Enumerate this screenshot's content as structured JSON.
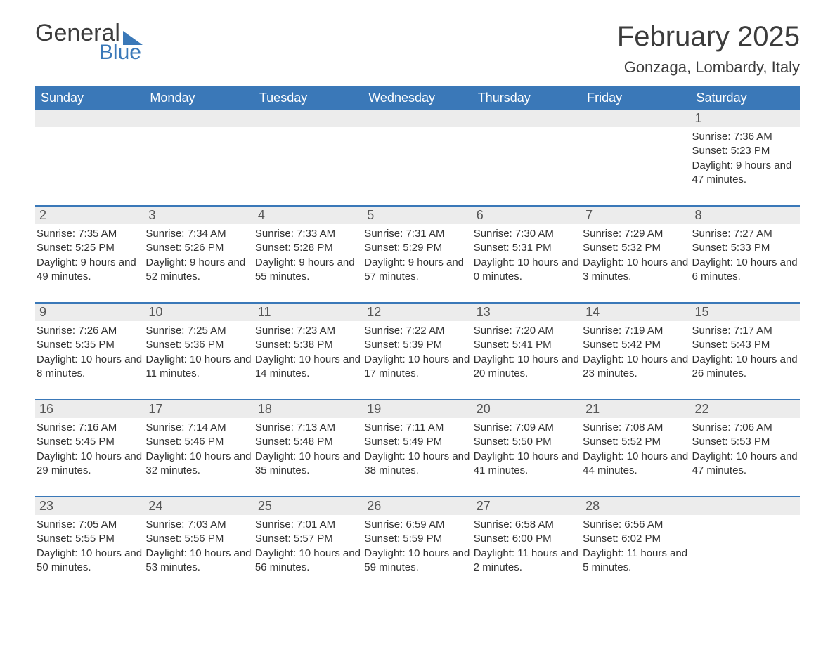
{
  "logo": {
    "text1": "General",
    "text2": "Blue"
  },
  "title": "February 2025",
  "location": "Gonzaga, Lombardy, Italy",
  "colors": {
    "brand": "#3a78b8",
    "header_bg": "#3a78b8",
    "header_text": "#ffffff",
    "daynum_bg": "#ececec",
    "body_text": "#333333",
    "title_text": "#3c3c3c"
  },
  "days_of_week": [
    "Sunday",
    "Monday",
    "Tuesday",
    "Wednesday",
    "Thursday",
    "Friday",
    "Saturday"
  ],
  "labels": {
    "sunrise": "Sunrise:",
    "sunset": "Sunset:",
    "daylight": "Daylight:"
  },
  "weeks": [
    [
      {
        "n": "",
        "empty": true
      },
      {
        "n": "",
        "empty": true
      },
      {
        "n": "",
        "empty": true
      },
      {
        "n": "",
        "empty": true
      },
      {
        "n": "",
        "empty": true
      },
      {
        "n": "",
        "empty": true
      },
      {
        "n": "1",
        "sunrise": "7:36 AM",
        "sunset": "5:23 PM",
        "daylight": "9 hours and 47 minutes."
      }
    ],
    [
      {
        "n": "2",
        "sunrise": "7:35 AM",
        "sunset": "5:25 PM",
        "daylight": "9 hours and 49 minutes."
      },
      {
        "n": "3",
        "sunrise": "7:34 AM",
        "sunset": "5:26 PM",
        "daylight": "9 hours and 52 minutes."
      },
      {
        "n": "4",
        "sunrise": "7:33 AM",
        "sunset": "5:28 PM",
        "daylight": "9 hours and 55 minutes."
      },
      {
        "n": "5",
        "sunrise": "7:31 AM",
        "sunset": "5:29 PM",
        "daylight": "9 hours and 57 minutes."
      },
      {
        "n": "6",
        "sunrise": "7:30 AM",
        "sunset": "5:31 PM",
        "daylight": "10 hours and 0 minutes."
      },
      {
        "n": "7",
        "sunrise": "7:29 AM",
        "sunset": "5:32 PM",
        "daylight": "10 hours and 3 minutes."
      },
      {
        "n": "8",
        "sunrise": "7:27 AM",
        "sunset": "5:33 PM",
        "daylight": "10 hours and 6 minutes."
      }
    ],
    [
      {
        "n": "9",
        "sunrise": "7:26 AM",
        "sunset": "5:35 PM",
        "daylight": "10 hours and 8 minutes."
      },
      {
        "n": "10",
        "sunrise": "7:25 AM",
        "sunset": "5:36 PM",
        "daylight": "10 hours and 11 minutes."
      },
      {
        "n": "11",
        "sunrise": "7:23 AM",
        "sunset": "5:38 PM",
        "daylight": "10 hours and 14 minutes."
      },
      {
        "n": "12",
        "sunrise": "7:22 AM",
        "sunset": "5:39 PM",
        "daylight": "10 hours and 17 minutes."
      },
      {
        "n": "13",
        "sunrise": "7:20 AM",
        "sunset": "5:41 PM",
        "daylight": "10 hours and 20 minutes."
      },
      {
        "n": "14",
        "sunrise": "7:19 AM",
        "sunset": "5:42 PM",
        "daylight": "10 hours and 23 minutes."
      },
      {
        "n": "15",
        "sunrise": "7:17 AM",
        "sunset": "5:43 PM",
        "daylight": "10 hours and 26 minutes."
      }
    ],
    [
      {
        "n": "16",
        "sunrise": "7:16 AM",
        "sunset": "5:45 PM",
        "daylight": "10 hours and 29 minutes."
      },
      {
        "n": "17",
        "sunrise": "7:14 AM",
        "sunset": "5:46 PM",
        "daylight": "10 hours and 32 minutes."
      },
      {
        "n": "18",
        "sunrise": "7:13 AM",
        "sunset": "5:48 PM",
        "daylight": "10 hours and 35 minutes."
      },
      {
        "n": "19",
        "sunrise": "7:11 AM",
        "sunset": "5:49 PM",
        "daylight": "10 hours and 38 minutes."
      },
      {
        "n": "20",
        "sunrise": "7:09 AM",
        "sunset": "5:50 PM",
        "daylight": "10 hours and 41 minutes."
      },
      {
        "n": "21",
        "sunrise": "7:08 AM",
        "sunset": "5:52 PM",
        "daylight": "10 hours and 44 minutes."
      },
      {
        "n": "22",
        "sunrise": "7:06 AM",
        "sunset": "5:53 PM",
        "daylight": "10 hours and 47 minutes."
      }
    ],
    [
      {
        "n": "23",
        "sunrise": "7:05 AM",
        "sunset": "5:55 PM",
        "daylight": "10 hours and 50 minutes."
      },
      {
        "n": "24",
        "sunrise": "7:03 AM",
        "sunset": "5:56 PM",
        "daylight": "10 hours and 53 minutes."
      },
      {
        "n": "25",
        "sunrise": "7:01 AM",
        "sunset": "5:57 PM",
        "daylight": "10 hours and 56 minutes."
      },
      {
        "n": "26",
        "sunrise": "6:59 AM",
        "sunset": "5:59 PM",
        "daylight": "10 hours and 59 minutes."
      },
      {
        "n": "27",
        "sunrise": "6:58 AM",
        "sunset": "6:00 PM",
        "daylight": "11 hours and 2 minutes."
      },
      {
        "n": "28",
        "sunrise": "6:56 AM",
        "sunset": "6:02 PM",
        "daylight": "11 hours and 5 minutes."
      },
      {
        "n": "",
        "empty": true
      }
    ]
  ]
}
